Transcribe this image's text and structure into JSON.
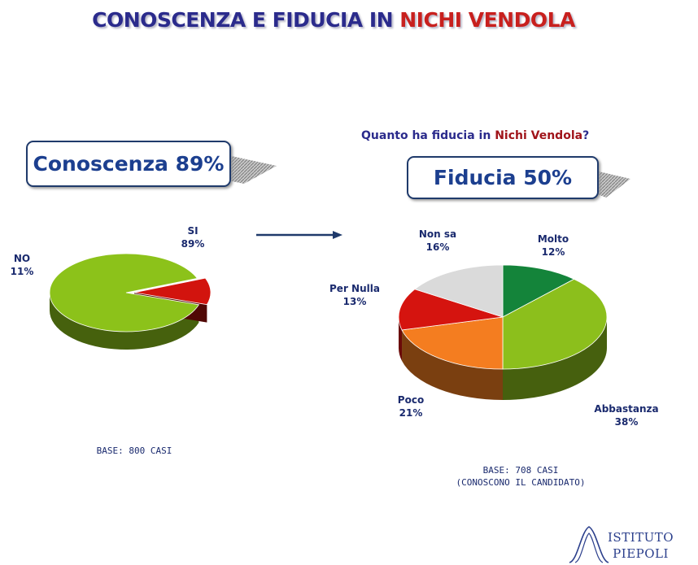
{
  "title": {
    "part1": "CONOSCENZA E FIDUCIA IN ",
    "part2": "NICHI VENDOLA"
  },
  "left_panel": {
    "badge": "Conoscenza 89%",
    "base_note": "BASE: 800 CASI"
  },
  "right_panel": {
    "question_part1": "Quanto ha fiducia in ",
    "question_name": "Nichi Vendola",
    "question_end": "?",
    "badge": "Fiducia 50%",
    "base_note_line1": "BASE: 708 CASI",
    "base_note_line2": "(CONOSCONO IL CANDIDATO)"
  },
  "chart_data": [
    {
      "type": "pie",
      "title": "Conoscenza 89%",
      "slices": [
        {
          "label": "SI",
          "value": 89,
          "value_label": "89%",
          "color": "#8cc21a"
        },
        {
          "label": "NO",
          "value": 11,
          "value_label": "11%",
          "color": "#d2140e"
        }
      ]
    },
    {
      "type": "pie",
      "title": "Fiducia 50%",
      "slices": [
        {
          "label": "Molto",
          "value": 12,
          "value_label": "12%",
          "color": "#14843a"
        },
        {
          "label": "Abbastanza",
          "value": 38,
          "value_label": "38%",
          "color": "#8cbf1c"
        },
        {
          "label": "Poco",
          "value": 21,
          "value_label": "21%",
          "color": "#f47d20"
        },
        {
          "label": "Per Nulla",
          "value": 13,
          "value_label": "13%",
          "color": "#d5140f"
        },
        {
          "label": "Non sa",
          "value": 16,
          "value_label": "16%",
          "color": "#dadada"
        }
      ]
    }
  ],
  "logo": {
    "line1": "ISTITUTO",
    "line2": "PIEPOLI"
  }
}
